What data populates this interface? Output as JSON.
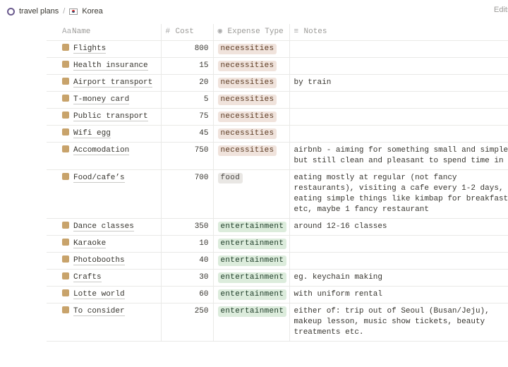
{
  "breadcrumb": {
    "workspace": "travel plans",
    "separator": "/",
    "page": "Korea",
    "right": "Edits"
  },
  "table": {
    "headers": {
      "name": "Name",
      "cost": "Cost",
      "type": "Expense Type",
      "notes": "Notes"
    },
    "tag_colors": {
      "necessities": {
        "bg": "#f0e3dc",
        "fg": "#5c3b23"
      },
      "food": {
        "bg": "#e9e7e4",
        "fg": "#4a4744"
      },
      "entertainment": {
        "bg": "#dcecdc",
        "fg": "#1c3a26"
      }
    },
    "rows": [
      {
        "name": "Flights",
        "cost": 800,
        "type": "necessities"
      },
      {
        "name": "Health insurance",
        "cost": 15,
        "type": "necessities"
      },
      {
        "name": "Airport transport",
        "cost": 20,
        "type": "necessities",
        "notes": "by train"
      },
      {
        "name": "T-money card",
        "cost": 5,
        "type": "necessities"
      },
      {
        "name": "Public transport",
        "cost": 75,
        "type": "necessities"
      },
      {
        "name": "Wifi egg",
        "cost": 45,
        "type": "necessities"
      },
      {
        "name": "Accomodation",
        "cost": 750,
        "type": "necessities",
        "notes": "airbnb - aiming for something small and simple, but still clean and pleasant to spend time in"
      },
      {
        "name": "Food/cafe’s",
        "cost": 700,
        "type": "food",
        "notes": "eating mostly at regular (not fancy restaurants), visiting a cafe every 1-2 days, eating simple things like kimbap for breakfast etc, maybe 1 fancy restaurant"
      },
      {
        "name": "Dance classes",
        "cost": 350,
        "type": "entertainment",
        "notes": "around 12-16 classes"
      },
      {
        "name": "Karaoke",
        "cost": 10,
        "type": "entertainment"
      },
      {
        "name": "Photobooths",
        "cost": 40,
        "type": "entertainment"
      },
      {
        "name": "Crafts",
        "cost": 30,
        "type": "entertainment",
        "notes": "eg. keychain making"
      },
      {
        "name": "Lotte world",
        "cost": 60,
        "type": "entertainment",
        "notes": "with uniform rental"
      },
      {
        "name": "To consider",
        "cost": 250,
        "type": "entertainment",
        "notes": "either of: trip out of Seoul (Busan/Jeju), makeup lesson, music show tickets, beauty treatments etc."
      }
    ]
  }
}
